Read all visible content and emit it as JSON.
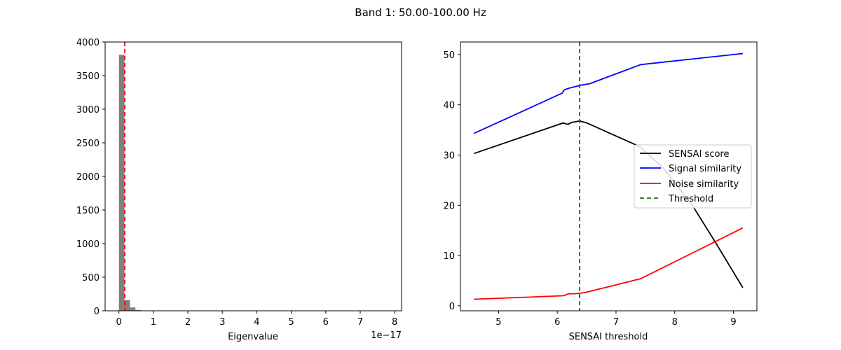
{
  "figure_title": "Band 1: 50.00-100.00 Hz",
  "chart_data": [
    {
      "type": "bar",
      "title": "",
      "xlabel": "Eigenvalue",
      "ylabel": "",
      "x_offset_label": "1e−17",
      "xlim": [
        -0.4,
        8.2
      ],
      "ylim": [
        0,
        4000
      ],
      "xticks": [
        0,
        1,
        2,
        3,
        4,
        5,
        6,
        7,
        8
      ],
      "yticks": [
        0,
        500,
        1000,
        1500,
        2000,
        2500,
        3000,
        3500,
        4000
      ],
      "bar_color": "#808080",
      "bins": [
        {
          "x0": 0.0,
          "x1": 0.16,
          "count": 3810
        },
        {
          "x0": 0.16,
          "x1": 0.32,
          "count": 160
        },
        {
          "x0": 0.32,
          "x1": 0.48,
          "count": 50
        },
        {
          "x0": 0.48,
          "x1": 0.64,
          "count": 12
        },
        {
          "x0": 0.64,
          "x1": 0.8,
          "count": 3
        },
        {
          "x0": 0.8,
          "x1": 0.96,
          "count": 1
        }
      ],
      "threshold": {
        "x": 0.17,
        "color": "#ff0000",
        "style": "dashed"
      }
    },
    {
      "type": "line",
      "title": "",
      "xlabel": "SENSAI threshold",
      "ylabel": "",
      "xlim": [
        4.35,
        9.4
      ],
      "ylim": [
        -1,
        52.5
      ],
      "xticks": [
        5,
        6,
        7,
        8,
        9
      ],
      "yticks": [
        0,
        10,
        20,
        30,
        40,
        50
      ],
      "legend_position": "center-right",
      "series": [
        {
          "name": "SENSAI score",
          "color": "#000000",
          "style": "solid",
          "x": [
            4.58,
            6.1,
            6.18,
            6.25,
            6.3,
            6.38,
            6.5,
            7.4,
            7.8,
            8.3,
            8.7,
            9.16
          ],
          "y": [
            30.3,
            36.4,
            36.1,
            36.5,
            36.6,
            36.8,
            36.4,
            31.7,
            27.5,
            20.0,
            12.5,
            3.6
          ]
        },
        {
          "name": "Signal similarity",
          "color": "#0000ff",
          "style": "solid",
          "x": [
            4.58,
            6.08,
            6.12,
            6.2,
            6.3,
            6.4,
            6.55,
            7.42,
            9.16
          ],
          "y": [
            34.3,
            42.3,
            43.0,
            43.3,
            43.6,
            43.9,
            44.2,
            48.0,
            50.2
          ]
        },
        {
          "name": "Noise similarity",
          "color": "#ff0000",
          "style": "solid",
          "x": [
            4.58,
            6.1,
            6.2,
            6.3,
            6.4,
            6.5,
            7.42,
            8.3,
            9.16
          ],
          "y": [
            1.3,
            2.0,
            2.4,
            2.4,
            2.5,
            2.7,
            5.4,
            10.5,
            15.5
          ]
        }
      ],
      "threshold": {
        "name": "Threshold",
        "x": 6.38,
        "color": "#008000",
        "style": "dashed"
      }
    }
  ]
}
